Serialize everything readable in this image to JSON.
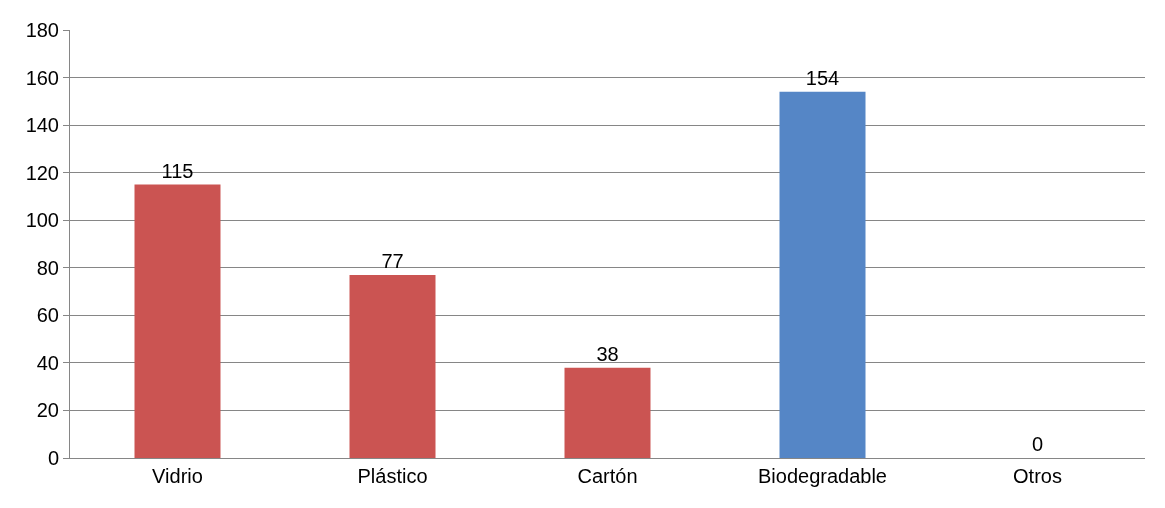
{
  "chart_data": {
    "type": "bar",
    "categories": [
      "Vidrio",
      "Plástico",
      "Cartón",
      "Biodegradable",
      "Otros"
    ],
    "values": [
      115,
      77,
      38,
      154,
      0
    ],
    "colors": [
      "#cb5452",
      "#cb5452",
      "#cb5452",
      "#5586c6",
      "#cb5452"
    ],
    "ylim": [
      0,
      180
    ],
    "yticks": [
      0,
      20,
      40,
      60,
      80,
      100,
      120,
      140,
      160,
      180
    ],
    "grid": "y",
    "data_labels": true,
    "legend": false
  }
}
